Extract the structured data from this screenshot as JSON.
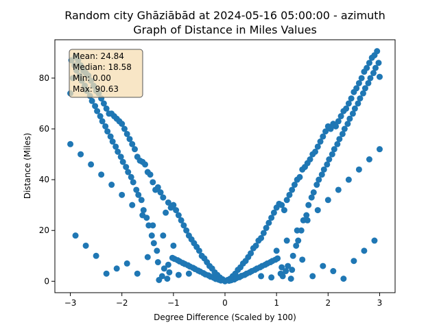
{
  "chart_data": {
    "type": "scatter",
    "title_line1": "Random city Ghāziābād at 2024-05-16 05:00:00  - azimuth",
    "title_line2": "Graph of Distance in Miles Values",
    "xlabel": "Degree Difference (Scaled by 100)",
    "ylabel": "Distance (Miles)",
    "xlim": [
      -3.3,
      3.3
    ],
    "ylim": [
      -4.5,
      95.1
    ],
    "xticks": [
      -3,
      -2,
      -1,
      0,
      1,
      2,
      3
    ],
    "yticks": [
      0,
      20,
      40,
      60,
      80
    ],
    "grid": false,
    "marker_color": "#1f77b4",
    "stats_box": {
      "placement": "top-left",
      "lines": [
        "Mean: 24.84",
        "Median: 18.58",
        "Min: 0.00",
        "Max: 90.63"
      ],
      "face_color": "#f5deb3"
    },
    "points": [
      {
        "x": 0.0,
        "y": 0.0
      },
      {
        "x": 0.05,
        "y": 0.5
      },
      {
        "x": -0.05,
        "y": 0.8
      },
      {
        "x": 0.1,
        "y": 1.0
      },
      {
        "x": -0.1,
        "y": 1.5
      },
      {
        "x": 0.15,
        "y": 2.0
      },
      {
        "x": -0.15,
        "y": 2.5
      },
      {
        "x": 0.2,
        "y": 3.0
      },
      {
        "x": -0.2,
        "y": 3.5
      },
      {
        "x": 0.25,
        "y": 4.5
      },
      {
        "x": -0.25,
        "y": 5.0
      },
      {
        "x": 0.3,
        "y": 5.5
      },
      {
        "x": -0.3,
        "y": 6.0
      },
      {
        "x": 0.35,
        "y": 7.0
      },
      {
        "x": -0.35,
        "y": 7.5
      },
      {
        "x": 0.4,
        "y": 8.0
      },
      {
        "x": -0.4,
        "y": 9.0
      },
      {
        "x": 0.45,
        "y": 9.5
      },
      {
        "x": -0.45,
        "y": 10.0
      },
      {
        "x": 0.5,
        "y": 11.0
      },
      {
        "x": -0.5,
        "y": 12.0
      },
      {
        "x": 0.55,
        "y": 13.0
      },
      {
        "x": -0.55,
        "y": 13.5
      },
      {
        "x": 0.6,
        "y": 14.0
      },
      {
        "x": -0.6,
        "y": 15.0
      },
      {
        "x": 0.65,
        "y": 16.0
      },
      {
        "x": -0.65,
        "y": 16.5
      },
      {
        "x": 0.7,
        "y": 17.0
      },
      {
        "x": -0.7,
        "y": 18.0
      },
      {
        "x": 0.75,
        "y": 19.0
      },
      {
        "x": -0.75,
        "y": 20.0
      },
      {
        "x": 0.8,
        "y": 21.0
      },
      {
        "x": -0.8,
        "y": 22.0
      },
      {
        "x": 0.85,
        "y": 23.0
      },
      {
        "x": -0.85,
        "y": 24.0
      },
      {
        "x": 0.9,
        "y": 25.0
      },
      {
        "x": -0.9,
        "y": 26.0
      },
      {
        "x": 0.95,
        "y": 27.0
      },
      {
        "x": -0.95,
        "y": 28.0
      },
      {
        "x": 1.0,
        "y": 29.0
      },
      {
        "x": -1.0,
        "y": 30.0
      },
      {
        "x": 1.05,
        "y": 30.5
      },
      {
        "x": -1.05,
        "y": 29.0
      },
      {
        "x": 1.1,
        "y": 30.0
      },
      {
        "x": -1.1,
        "y": 31.0
      },
      {
        "x": 1.15,
        "y": 28.0
      },
      {
        "x": -1.15,
        "y": 27.0
      },
      {
        "x": 1.2,
        "y": 32.0
      },
      {
        "x": -1.2,
        "y": 33.0
      },
      {
        "x": 1.25,
        "y": 34.0
      },
      {
        "x": -1.25,
        "y": 35.0
      },
      {
        "x": 1.3,
        "y": 36.0
      },
      {
        "x": -1.3,
        "y": 37.0
      },
      {
        "x": 1.35,
        "y": 38.0
      },
      {
        "x": -1.35,
        "y": 36.0
      },
      {
        "x": 1.4,
        "y": 40.0
      },
      {
        "x": -1.4,
        "y": 39.0
      },
      {
        "x": 1.45,
        "y": 41.0
      },
      {
        "x": -1.45,
        "y": 42.0
      },
      {
        "x": 1.5,
        "y": 44.0
      },
      {
        "x": -1.5,
        "y": 43.0
      },
      {
        "x": 1.55,
        "y": 45.0
      },
      {
        "x": -1.55,
        "y": 46.0
      },
      {
        "x": 1.6,
        "y": 46.5
      },
      {
        "x": -1.6,
        "y": 47.0
      },
      {
        "x": 1.65,
        "y": 48.0
      },
      {
        "x": -1.65,
        "y": 47.5
      },
      {
        "x": 1.7,
        "y": 50.0
      },
      {
        "x": -1.7,
        "y": 49.0
      },
      {
        "x": 1.75,
        "y": 51.0
      },
      {
        "x": -1.75,
        "y": 52.0
      },
      {
        "x": 1.8,
        "y": 53.0
      },
      {
        "x": -1.8,
        "y": 54.0
      },
      {
        "x": 1.85,
        "y": 55.0
      },
      {
        "x": -1.85,
        "y": 56.0
      },
      {
        "x": 1.9,
        "y": 57.0
      },
      {
        "x": -1.9,
        "y": 58.0
      },
      {
        "x": 1.95,
        "y": 59.0
      },
      {
        "x": -1.95,
        "y": 60.0
      },
      {
        "x": 2.0,
        "y": 61.0
      },
      {
        "x": -2.0,
        "y": 62.0
      },
      {
        "x": 2.05,
        "y": 60.0
      },
      {
        "x": -2.05,
        "y": 63.0
      },
      {
        "x": 2.1,
        "y": 62.0
      },
      {
        "x": -2.1,
        "y": 64.0
      },
      {
        "x": 2.15,
        "y": 61.0
      },
      {
        "x": -2.15,
        "y": 65.0
      },
      {
        "x": 2.2,
        "y": 63.0
      },
      {
        "x": -2.2,
        "y": 66.0
      },
      {
        "x": 2.25,
        "y": 65.0
      },
      {
        "x": -2.25,
        "y": 66.0
      },
      {
        "x": 2.3,
        "y": 67.0
      },
      {
        "x": -2.3,
        "y": 68.0
      },
      {
        "x": 2.35,
        "y": 68.0
      },
      {
        "x": -2.35,
        "y": 70.0
      },
      {
        "x": 2.4,
        "y": 70.0
      },
      {
        "x": -2.4,
        "y": 72.0
      },
      {
        "x": 2.45,
        "y": 72.0
      },
      {
        "x": -2.45,
        "y": 74.0
      },
      {
        "x": 2.5,
        "y": 74.5
      },
      {
        "x": -2.5,
        "y": 75.0
      },
      {
        "x": 2.55,
        "y": 76.0
      },
      {
        "x": -2.55,
        "y": 77.0
      },
      {
        "x": 2.6,
        "y": 78.0
      },
      {
        "x": -2.6,
        "y": 79.0
      },
      {
        "x": 2.65,
        "y": 80.0
      },
      {
        "x": -2.65,
        "y": 81.0
      },
      {
        "x": 2.7,
        "y": 82.5
      },
      {
        "x": -2.7,
        "y": 82.0
      },
      {
        "x": 2.75,
        "y": 84.0
      },
      {
        "x": -2.75,
        "y": 83.0
      },
      {
        "x": 2.8,
        "y": 86.0
      },
      {
        "x": -2.8,
        "y": 85.0
      },
      {
        "x": 2.85,
        "y": 88.0
      },
      {
        "x": -2.85,
        "y": 87.0
      },
      {
        "x": 2.9,
        "y": 89.0
      },
      {
        "x": -2.9,
        "y": 88.5
      },
      {
        "x": 2.95,
        "y": 90.6
      },
      {
        "x": -2.95,
        "y": 80.0
      },
      {
        "x": 3.0,
        "y": 80.5
      },
      {
        "x": -3.0,
        "y": 74.0
      },
      {
        "x": 0.08,
        "y": 0.2
      },
      {
        "x": -0.08,
        "y": 0.3
      },
      {
        "x": 0.12,
        "y": 0.4
      },
      {
        "x": -0.12,
        "y": 0.6
      },
      {
        "x": 0.18,
        "y": 0.7
      },
      {
        "x": -0.18,
        "y": 0.9
      },
      {
        "x": 0.22,
        "y": 1.2
      },
      {
        "x": -0.22,
        "y": 1.4
      },
      {
        "x": 0.28,
        "y": 1.6
      },
      {
        "x": -0.28,
        "y": 1.8
      },
      {
        "x": 0.32,
        "y": 2.1
      },
      {
        "x": -0.32,
        "y": 2.3
      },
      {
        "x": 0.38,
        "y": 2.5
      },
      {
        "x": -0.38,
        "y": 2.7
      },
      {
        "x": 0.42,
        "y": 3.0
      },
      {
        "x": -0.42,
        "y": 3.2
      },
      {
        "x": 0.48,
        "y": 3.5
      },
      {
        "x": -0.48,
        "y": 3.8
      },
      {
        "x": 0.52,
        "y": 4.0
      },
      {
        "x": -0.52,
        "y": 4.2
      },
      {
        "x": 0.58,
        "y": 4.5
      },
      {
        "x": -0.58,
        "y": 4.8
      },
      {
        "x": 0.62,
        "y": 5.0
      },
      {
        "x": -0.62,
        "y": 5.3
      },
      {
        "x": 0.68,
        "y": 5.5
      },
      {
        "x": -0.68,
        "y": 5.8
      },
      {
        "x": 0.72,
        "y": 6.0
      },
      {
        "x": -0.72,
        "y": 6.3
      },
      {
        "x": 0.78,
        "y": 6.5
      },
      {
        "x": -0.78,
        "y": 6.8
      },
      {
        "x": 0.82,
        "y": 7.0
      },
      {
        "x": -0.82,
        "y": 7.2
      },
      {
        "x": 0.88,
        "y": 7.5
      },
      {
        "x": -0.88,
        "y": 7.8
      },
      {
        "x": 0.92,
        "y": 8.0
      },
      {
        "x": -0.92,
        "y": 8.3
      },
      {
        "x": 0.98,
        "y": 8.5
      },
      {
        "x": -0.98,
        "y": 8.8
      },
      {
        "x": 1.02,
        "y": 9.0
      },
      {
        "x": -1.02,
        "y": 9.2
      },
      {
        "x": 1.08,
        "y": 3.0
      },
      {
        "x": -1.08,
        "y": 3.5
      },
      {
        "x": 1.12,
        "y": 2.0
      },
      {
        "x": -1.12,
        "y": 1.0
      },
      {
        "x": 1.18,
        "y": 4.0
      },
      {
        "x": -1.18,
        "y": 5.0
      },
      {
        "x": 1.22,
        "y": 6.0
      },
      {
        "x": -1.22,
        "y": 2.0
      },
      {
        "x": 1.28,
        "y": 1.0
      },
      {
        "x": -1.28,
        "y": 0.5
      },
      {
        "x": 1.32,
        "y": 10.0
      },
      {
        "x": -1.32,
        "y": 12.0
      },
      {
        "x": 1.38,
        "y": 14.0
      },
      {
        "x": -1.38,
        "y": 15.0
      },
      {
        "x": 1.42,
        "y": 16.0
      },
      {
        "x": -1.42,
        "y": 18.0
      },
      {
        "x": 1.48,
        "y": 20.0
      },
      {
        "x": -1.48,
        "y": 22.0
      },
      {
        "x": 1.52,
        "y": 24.0
      },
      {
        "x": -1.52,
        "y": 25.0
      },
      {
        "x": 1.58,
        "y": 26.0
      },
      {
        "x": -1.58,
        "y": 28.0
      },
      {
        "x": 1.62,
        "y": 30.0
      },
      {
        "x": -1.62,
        "y": 32.0
      },
      {
        "x": 1.68,
        "y": 33.0
      },
      {
        "x": -1.68,
        "y": 34.0
      },
      {
        "x": 1.72,
        "y": 35.0
      },
      {
        "x": -1.72,
        "y": 36.0
      },
      {
        "x": 1.78,
        "y": 38.0
      },
      {
        "x": -1.78,
        "y": 39.0
      },
      {
        "x": 1.82,
        "y": 40.0
      },
      {
        "x": -1.82,
        "y": 41.0
      },
      {
        "x": 1.88,
        "y": 42.0
      },
      {
        "x": -1.88,
        "y": 43.0
      },
      {
        "x": 1.92,
        "y": 44.0
      },
      {
        "x": -1.92,
        "y": 45.0
      },
      {
        "x": 1.98,
        "y": 46.0
      },
      {
        "x": -1.98,
        "y": 47.0
      },
      {
        "x": 2.02,
        "y": 48.0
      },
      {
        "x": -2.02,
        "y": 49.0
      },
      {
        "x": 2.08,
        "y": 50.0
      },
      {
        "x": -2.08,
        "y": 51.0
      },
      {
        "x": 2.12,
        "y": 52.0
      },
      {
        "x": -2.12,
        "y": 53.0
      },
      {
        "x": 2.18,
        "y": 54.0
      },
      {
        "x": -2.18,
        "y": 55.0
      },
      {
        "x": 2.22,
        "y": 56.0
      },
      {
        "x": -2.22,
        "y": 57.0
      },
      {
        "x": 2.28,
        "y": 58.0
      },
      {
        "x": -2.28,
        "y": 59.0
      },
      {
        "x": 2.32,
        "y": 60.0
      },
      {
        "x": -2.32,
        "y": 61.0
      },
      {
        "x": 2.38,
        "y": 62.0
      },
      {
        "x": -2.38,
        "y": 63.0
      },
      {
        "x": 2.42,
        "y": 64.0
      },
      {
        "x": -2.42,
        "y": 65.0
      },
      {
        "x": 2.48,
        "y": 66.0
      },
      {
        "x": -2.48,
        "y": 67.0
      },
      {
        "x": 2.52,
        "y": 68.0
      },
      {
        "x": -2.52,
        "y": 69.0
      },
      {
        "x": 2.58,
        "y": 70.0
      },
      {
        "x": -2.58,
        "y": 71.0
      },
      {
        "x": 2.62,
        "y": 72.0
      },
      {
        "x": -2.62,
        "y": 73.0
      },
      {
        "x": 2.68,
        "y": 74.0
      },
      {
        "x": -2.68,
        "y": 75.0
      },
      {
        "x": 2.72,
        "y": 76.0
      },
      {
        "x": -2.72,
        "y": 77.0
      },
      {
        "x": 2.78,
        "y": 78.0
      },
      {
        "x": -2.78,
        "y": 79.0
      },
      {
        "x": 2.82,
        "y": 80.0
      },
      {
        "x": -2.82,
        "y": 81.0
      },
      {
        "x": 2.88,
        "y": 82.0
      },
      {
        "x": -2.88,
        "y": 83.0
      },
      {
        "x": 2.92,
        "y": 84.0
      },
      {
        "x": -2.92,
        "y": 85.0
      },
      {
        "x": 2.98,
        "y": 86.0
      },
      {
        "x": -2.98,
        "y": 87.0
      },
      {
        "x": 0.7,
        "y": 2.0
      },
      {
        "x": -0.7,
        "y": 3.0
      },
      {
        "x": 0.9,
        "y": 1.5
      },
      {
        "x": -0.9,
        "y": 2.5
      },
      {
        "x": 1.1,
        "y": 5.5
      },
      {
        "x": -1.1,
        "y": 6.5
      },
      {
        "x": 1.3,
        "y": 4.5
      },
      {
        "x": -1.3,
        "y": 7.5
      },
      {
        "x": 1.5,
        "y": 8.5
      },
      {
        "x": -1.5,
        "y": 9.5
      },
      {
        "x": 1.7,
        "y": 2.0
      },
      {
        "x": -1.7,
        "y": 3.0
      },
      {
        "x": 1.9,
        "y": 6.0
      },
      {
        "x": -1.9,
        "y": 7.0
      },
      {
        "x": 2.1,
        "y": 4.0
      },
      {
        "x": -2.1,
        "y": 5.0
      },
      {
        "x": 2.3,
        "y": 1.0
      },
      {
        "x": -2.3,
        "y": 3.0
      },
      {
        "x": 2.5,
        "y": 8.0
      },
      {
        "x": -2.5,
        "y": 10.0
      },
      {
        "x": 2.7,
        "y": 12.0
      },
      {
        "x": -2.7,
        "y": 14.0
      },
      {
        "x": 2.9,
        "y": 16.0
      },
      {
        "x": -2.9,
        "y": 18.0
      },
      {
        "x": 1.0,
        "y": 12.0
      },
      {
        "x": -1.0,
        "y": 14.0
      },
      {
        "x": 1.2,
        "y": 16.0
      },
      {
        "x": -1.2,
        "y": 18.0
      },
      {
        "x": 1.4,
        "y": 20.0
      },
      {
        "x": -1.4,
        "y": 22.0
      },
      {
        "x": 1.6,
        "y": 24.0
      },
      {
        "x": -1.6,
        "y": 26.0
      },
      {
        "x": 1.8,
        "y": 28.0
      },
      {
        "x": -1.8,
        "y": 30.0
      },
      {
        "x": 2.0,
        "y": 32.0
      },
      {
        "x": -2.0,
        "y": 34.0
      },
      {
        "x": 2.2,
        "y": 36.0
      },
      {
        "x": -2.2,
        "y": 38.0
      },
      {
        "x": 2.4,
        "y": 40.0
      },
      {
        "x": -2.4,
        "y": 42.0
      },
      {
        "x": 2.6,
        "y": 44.0
      },
      {
        "x": -2.6,
        "y": 46.0
      },
      {
        "x": 2.8,
        "y": 48.0
      },
      {
        "x": -2.8,
        "y": 50.0
      },
      {
        "x": 3.0,
        "y": 52.0
      },
      {
        "x": -3.0,
        "y": 54.0
      }
    ]
  }
}
